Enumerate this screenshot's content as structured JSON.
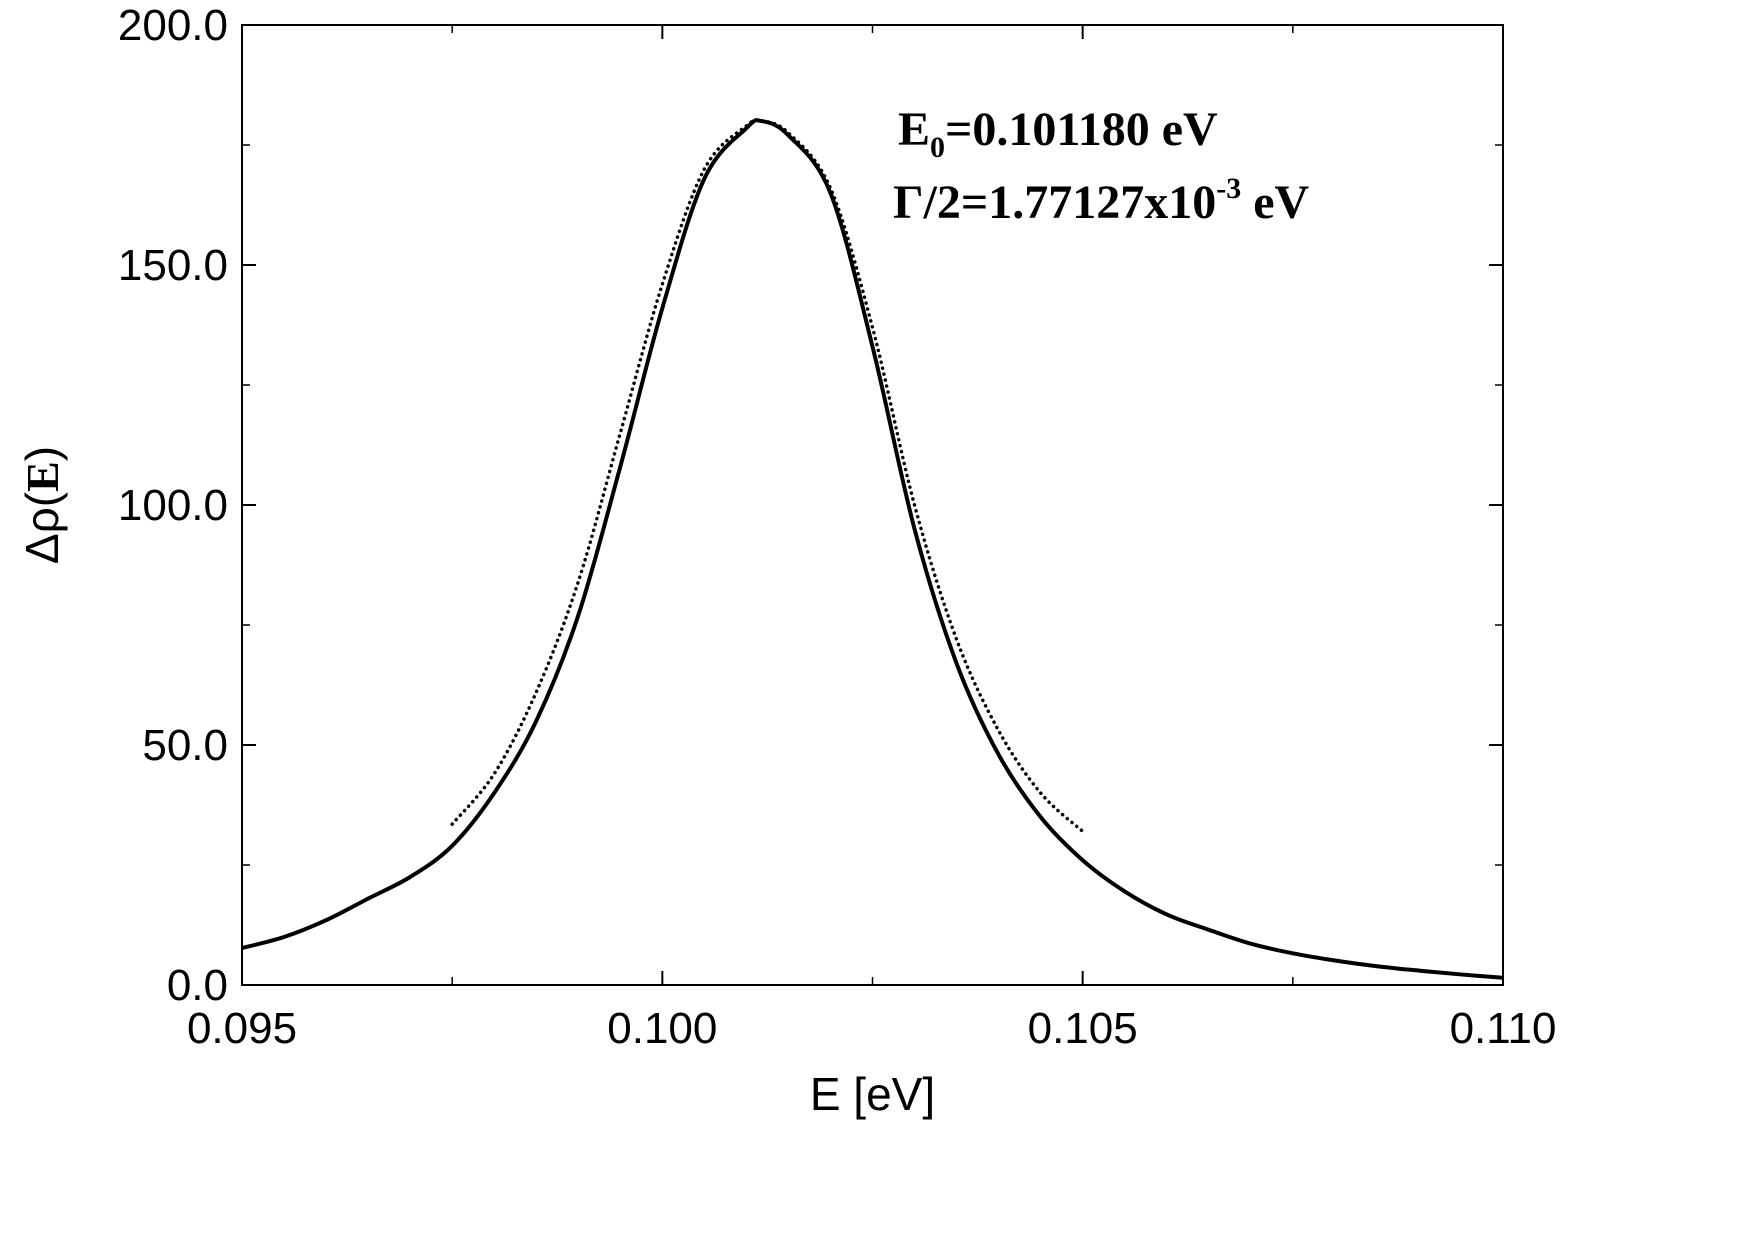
{
  "chart_data": {
    "type": "line",
    "title": "",
    "xlabel": "E [eV]",
    "ylabel_parts": {
      "main": "Δρ(",
      "bold": "E",
      "close": ")"
    },
    "xlim": [
      0.095,
      0.11
    ],
    "ylim": [
      0.0,
      200.0
    ],
    "x_ticks": [
      0.095,
      0.1,
      0.105,
      0.11
    ],
    "x_tick_labels": [
      "0.095",
      "0.100",
      "0.105",
      "0.110"
    ],
    "y_ticks": [
      0.0,
      50.0,
      100.0,
      150.0,
      200.0
    ],
    "y_tick_labels": [
      "0.0",
      "50.0",
      "100.0",
      "150.0",
      "200.0"
    ],
    "x_minor_step": 0.0025,
    "y_minor_step": 25.0,
    "grid": false,
    "legend": "none",
    "annotations": {
      "line1": {
        "main": "E",
        "sub": "0",
        "rest": "=0.101180 eV"
      },
      "line2": {
        "main": "Γ/2=1.77127x10",
        "sup": "-3",
        "rest": " eV"
      }
    },
    "series": [
      {
        "style": "solid",
        "color": "#000000",
        "x": [
          0.095,
          0.0955,
          0.096,
          0.0965,
          0.097,
          0.0975,
          0.098,
          0.0985,
          0.099,
          0.0995,
          0.1,
          0.1005,
          0.101,
          0.10118,
          0.1015,
          0.102,
          0.1025,
          0.103,
          0.1035,
          0.104,
          0.1045,
          0.105,
          0.1055,
          0.106,
          0.1065,
          0.107,
          0.1075,
          0.108,
          0.1085,
          0.109,
          0.1095,
          0.11
        ],
        "y": [
          7.7,
          10.0,
          13.5,
          18.0,
          22.5,
          29.0,
          40.0,
          55.0,
          77.0,
          108.0,
          141.0,
          168.0,
          178.5,
          180.0,
          177.0,
          165.0,
          133.0,
          95.0,
          67.0,
          48.0,
          35.0,
          26.0,
          19.5,
          14.7,
          11.5,
          8.6,
          6.6,
          5.1,
          3.9,
          3.0,
          2.2,
          1.5
        ]
      },
      {
        "style": "dotted",
        "color": "#000000",
        "x": [
          0.0975,
          0.098,
          0.0985,
          0.099,
          0.0995,
          0.1,
          0.1005,
          0.101,
          0.10118,
          0.1015,
          0.102,
          0.1025,
          0.103,
          0.1035,
          0.104,
          0.1045,
          0.105
        ],
        "y": [
          33.5,
          44.0,
          61.0,
          84.0,
          115.0,
          146.0,
          170.0,
          179.0,
          180.0,
          177.5,
          166.0,
          137.0,
          100.0,
          72.0,
          53.0,
          40.0,
          32.0
        ]
      }
    ]
  }
}
